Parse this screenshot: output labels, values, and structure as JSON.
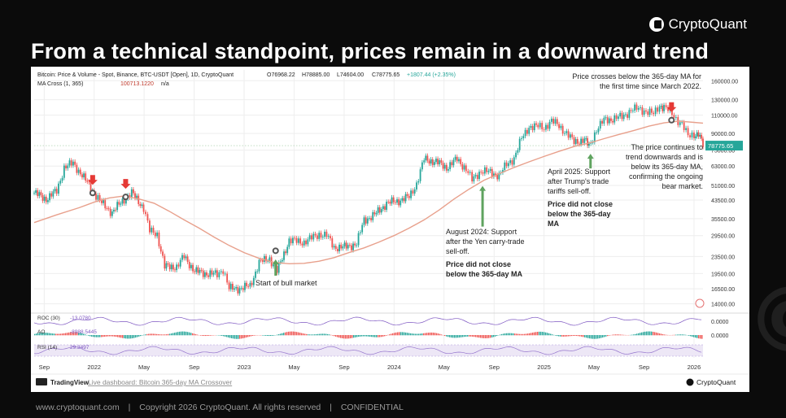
{
  "brand": {
    "name": "CryptoQuant"
  },
  "headline": "From a technical standpoint, prices remain in a downward trend",
  "chart_data": {
    "type": "line",
    "header": {
      "symbol_line": "Bitcoin: Price & Volume - Spot, Binance, BTC-USDT [Open], 1D, CryptoQuant",
      "ohlc": [
        "O76968.22",
        "H78885.00",
        "L74604.00",
        "C78775.65",
        "+1807.44 (+2.35%)"
      ],
      "ma_name": "MA Cross (1, 365)",
      "ma_value": "100713.1220",
      "ma_extra": "n/a"
    },
    "y_axis": {
      "scale": "log",
      "ticks": [
        "160000.00",
        "130000.00",
        "110000.00",
        "90000.00",
        "75000.00",
        "63000.00",
        "51000.00",
        "43500.00",
        "35500.00",
        "29500.00",
        "23500.00",
        "19500.00",
        "16500.00",
        "14000.00"
      ],
      "tick_values": [
        160000,
        130000,
        110000,
        90000,
        75000,
        63000,
        51000,
        43500,
        35500,
        29500,
        23500,
        19500,
        16500,
        14000
      ],
      "range": [
        13000,
        180000
      ]
    },
    "x_axis": {
      "ticks": [
        "Sep",
        "2022",
        "May",
        "Sep",
        "2023",
        "May",
        "Sep",
        "2024",
        "May",
        "Sep",
        "2025",
        "May",
        "Sep",
        "2026"
      ],
      "tick_times": [
        2021.667,
        2022.0,
        2022.333,
        2022.667,
        2023.0,
        2023.333,
        2023.667,
        2024.0,
        2024.333,
        2024.667,
        2025.0,
        2025.333,
        2025.667,
        2026.0
      ],
      "range": [
        2021.6,
        2026.06
      ]
    },
    "series": [
      {
        "name": "Bitcoin Price",
        "t": [
          2021.6,
          2021.68,
          2021.75,
          2021.8,
          2021.86,
          2021.92,
          2022.0,
          2022.05,
          2022.12,
          2022.2,
          2022.25,
          2022.33,
          2022.37,
          2022.42,
          2022.47,
          2022.55,
          2022.6,
          2022.67,
          2022.75,
          2022.82,
          2022.86,
          2022.9,
          2022.97,
          2023.04,
          2023.1,
          2023.17,
          2023.22,
          2023.3,
          2023.4,
          2023.5,
          2023.55,
          2023.6,
          2023.67,
          2023.75,
          2023.8,
          2023.87,
          2023.95,
          2024.02,
          2024.1,
          2024.15,
          2024.2,
          2024.28,
          2024.35,
          2024.42,
          2024.48,
          2024.52,
          2024.58,
          2024.63,
          2024.7,
          2024.75,
          2024.8,
          2024.85,
          2024.9,
          2024.96,
          2025.0,
          2025.05,
          2025.1,
          2025.15,
          2025.2,
          2025.27,
          2025.3,
          2025.35,
          2025.4,
          2025.47,
          2025.52,
          2025.58,
          2025.63,
          2025.68,
          2025.73,
          2025.77,
          2025.8,
          2025.84,
          2025.88,
          2025.92,
          2025.96,
          2026.0,
          2026.03,
          2026.06
        ],
        "values": [
          47000,
          44000,
          48000,
          62000,
          65000,
          57000,
          47000,
          42000,
          38000,
          44000,
          47000,
          40000,
          31000,
          30000,
          21000,
          21000,
          23500,
          20000,
          19500,
          19300,
          20500,
          16500,
          16600,
          17000,
          22000,
          23000,
          20000,
          28000,
          27500,
          30000,
          29500,
          26000,
          26000,
          27000,
          35000,
          37000,
          42000,
          43000,
          45000,
          52000,
          68000,
          66000,
          62000,
          68000,
          61000,
          54000,
          60000,
          59000,
          57000,
          64000,
          69000,
          85000,
          97000,
          97000,
          96000,
          103000,
          98000,
          90000,
          82000,
          84000,
          78000,
          94000,
          104000,
          106000,
          108000,
          116000,
          118000,
          115000,
          111000,
          122000,
          120000,
          114000,
          106000,
          100000,
          87000,
          89000,
          90000,
          78775
        ]
      },
      {
        "name": "365-day MA",
        "t": [
          2021.6,
          2021.75,
          2021.9,
          2022.0,
          2022.1,
          2022.2,
          2022.3,
          2022.4,
          2022.5,
          2022.6,
          2022.7,
          2022.8,
          2022.9,
          2023.0,
          2023.1,
          2023.2,
          2023.3,
          2023.4,
          2023.5,
          2023.6,
          2023.7,
          2023.8,
          2023.9,
          2024.0,
          2024.1,
          2024.2,
          2024.3,
          2024.4,
          2024.5,
          2024.6,
          2024.7,
          2024.8,
          2024.9,
          2025.0,
          2025.1,
          2025.2,
          2025.3,
          2025.4,
          2025.5,
          2025.6,
          2025.7,
          2025.8,
          2025.9,
          2026.0,
          2026.06
        ],
        "values": [
          34000,
          37000,
          40000,
          42500,
          44500,
          45500,
          44000,
          42000,
          38500,
          35000,
          32000,
          29000,
          26500,
          24500,
          23000,
          22000,
          21700,
          21800,
          22300,
          23200,
          24500,
          25800,
          27500,
          29500,
          32000,
          35000,
          39000,
          44000,
          49000,
          54000,
          58000,
          62000,
          66000,
          70000,
          74000,
          78000,
          81000,
          85000,
          89000,
          93000,
          97500,
          101000,
          103000,
          101500,
          100700
        ]
      }
    ],
    "markers": [
      {
        "label": "bear-cross-1",
        "t": 2021.99,
        "value": 47000
      },
      {
        "label": "bear-cross-2",
        "t": 2022.21,
        "value": 45000
      },
      {
        "label": "bull-cross",
        "t": 2023.21,
        "value": 25000
      },
      {
        "label": "bear-cross-2025",
        "t": 2025.85,
        "value": 104000
      }
    ],
    "last_price_label": "78775.65",
    "indicators": [
      {
        "name": "ROC (30)",
        "value": "-13.0780",
        "right": "0.0000"
      },
      {
        "name": "AO",
        "value": "-8988.5445",
        "right": "0.0000"
      },
      {
        "name": "RSI (14)",
        "value": "29.3497",
        "right": ""
      }
    ],
    "annotations": {
      "start_bull": "Start of bull market",
      "aug2024_lines": [
        "August 2024: Support",
        "after the Yen carry-trade",
        "sell-off."
      ],
      "aug2024_bold_lines": [
        "Price did not close",
        "below the 365-day MA"
      ],
      "apr2025_lines": [
        "April 2025: Support",
        "after Trump's trade",
        "tariffs sell-off."
      ],
      "apr2025_bold_lines": [
        "Price did not close",
        "below the 365-day",
        "MA"
      ],
      "cross_lines": [
        "Price crosses below the 365-day MA for",
        "the first time since March 2022."
      ],
      "continue_lines": [
        "The price continues to",
        "trend downwards and is",
        "below its 365-day MA,",
        "confirming the ongoing",
        "bear market."
      ]
    },
    "bottom": {
      "tradingview": "TradingView",
      "dashboard_link": "Live dashboard: Bitcoin 365-day MA Crossover",
      "cq_label": "CryptoQuant"
    },
    "colors": {
      "up": "#26a69a",
      "down": "#ef5350",
      "ma": "#e8a08c",
      "arrow": "#e53935",
      "support": "#5fa35f",
      "grid": "#eeeeee"
    }
  },
  "footer": {
    "site": "www.cryptoquant.com",
    "copyright": "Copyright 2026 CryptoQuant. All rights reserved",
    "confidential": "CONFIDENTIAL",
    "separator": "|"
  }
}
